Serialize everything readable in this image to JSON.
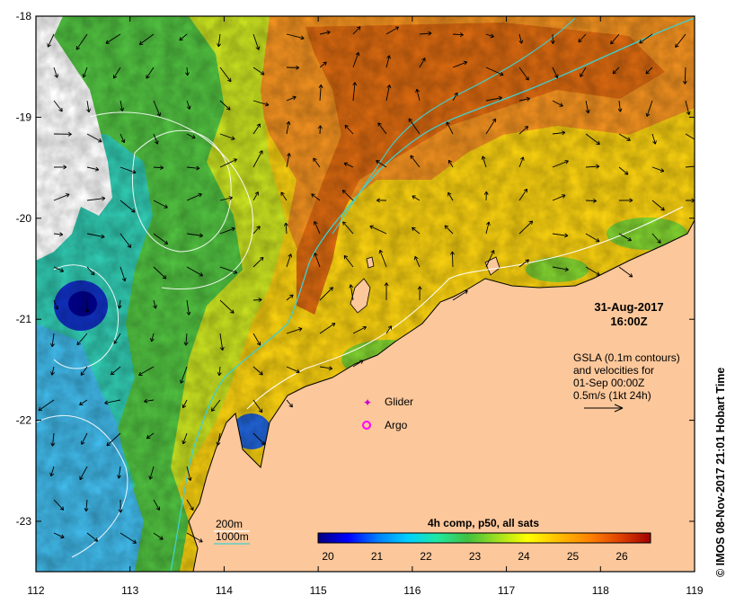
{
  "map": {
    "date": "31-Aug-2017",
    "time": "16:00Z",
    "gsla_lines": [
      "GSLA (0.1m contours)",
      "and velocities for",
      "01-Sep 00:00Z",
      "0.5m/s (1kt 24h)"
    ],
    "legend": {
      "glider": "Glider",
      "argo": "Argo",
      "glider_color": "#cc00cc",
      "argo_color": "#ff00ff"
    },
    "bathy": {
      "line_200": "200m",
      "line_1000": "1000m",
      "color_200": "#ffffff",
      "color_1000": "#40d0d0"
    },
    "colorbar": {
      "title": "4h comp, p50, all sats",
      "ticks": [
        "20",
        "21",
        "22",
        "23",
        "24",
        "25",
        "26"
      ],
      "colors": [
        "#00007f",
        "#0000ff",
        "#0080ff",
        "#00d0ff",
        "#20e8a0",
        "#40c040",
        "#a0e020",
        "#ffff00",
        "#ffc000",
        "#ff8000",
        "#e04000",
        "#a00000"
      ]
    },
    "credit": "©  IMOS 08-Nov-2017 21:01 Hobart Time",
    "land_color": "#fcc79a",
    "x_ticks": [
      "112",
      "113",
      "114",
      "115",
      "116",
      "117",
      "118",
      "119"
    ],
    "y_ticks": [
      "-18",
      "-19",
      "-20",
      "-21",
      "-22",
      "-23"
    ]
  }
}
